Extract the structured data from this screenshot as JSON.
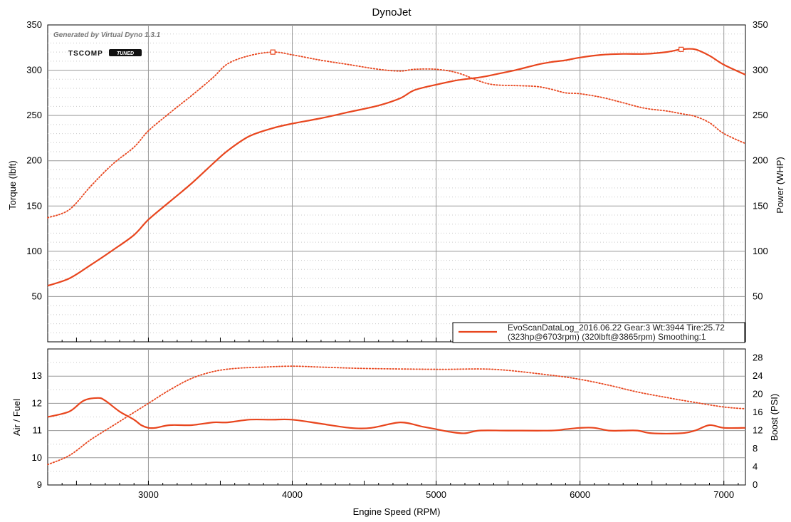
{
  "title": "DynoJet",
  "generated_by": "Generated by Virtual Dyno 1.3.1",
  "logo": {
    "text_a": "TSCOMP",
    "text_b": "TUNED"
  },
  "colors": {
    "series": "#e8461e",
    "grid": "#9a9a9a",
    "minor": "#c9c9c9",
    "frame": "#000000"
  },
  "legend": {
    "line1": "EvoScanDataLog_2016.06.22 Gear:3 Wt:3944 Tire:25.72",
    "line2": "(323hp@6703rpm) (320lbft@3865rpm) Smoothing:1"
  },
  "chart_data": [
    {
      "type": "line",
      "title": "DynoJet",
      "xlabel": "Engine Speed (RPM)",
      "ylabel": "Torque (lbft)",
      "y2label": "Power (WHP)",
      "xlim": [
        2300,
        7150
      ],
      "ylim": [
        0,
        350
      ],
      "y2lim": [
        0,
        350
      ],
      "x_ticks": [
        3000,
        4000,
        5000,
        6000,
        7000
      ],
      "y_ticks": [
        50,
        100,
        150,
        200,
        250,
        300,
        350
      ],
      "y2_ticks": [
        50,
        100,
        150,
        200,
        250,
        300,
        350
      ],
      "grid": true,
      "legend_position": "bottom-right",
      "series": [
        {
          "name": "Power (WHP)",
          "axis": "right",
          "style": "solid",
          "peak_marker": [
            6703,
            323
          ],
          "x": [
            2300,
            2450,
            2600,
            2750,
            2900,
            3000,
            3150,
            3300,
            3450,
            3550,
            3700,
            3865,
            4000,
            4200,
            4400,
            4600,
            4750,
            4850,
            5000,
            5150,
            5300,
            5400,
            5550,
            5700,
            5800,
            5900,
            6000,
            6150,
            6300,
            6450,
            6600,
            6703,
            6800,
            6900,
            7000,
            7150
          ],
          "y": [
            62,
            70,
            85,
            101,
            118,
            135,
            155,
            175,
            197,
            211,
            227,
            236,
            241,
            247,
            254,
            261,
            269,
            278,
            284,
            289,
            292,
            295,
            300,
            306,
            309,
            311,
            314,
            317,
            318,
            318,
            320,
            323,
            323,
            316,
            306,
            295
          ]
        },
        {
          "name": "Torque (lbft)",
          "axis": "left",
          "style": "dotted",
          "peak_marker": [
            3865,
            320
          ],
          "x": [
            2300,
            2450,
            2600,
            2750,
            2900,
            3000,
            3150,
            3300,
            3450,
            3550,
            3700,
            3865,
            4000,
            4200,
            4400,
            4600,
            4750,
            4850,
            5000,
            5150,
            5300,
            5400,
            5550,
            5700,
            5800,
            5900,
            6000,
            6150,
            6300,
            6450,
            6600,
            6703,
            6800,
            6900,
            7000,
            7150
          ],
          "y": [
            137,
            146,
            172,
            196,
            215,
            233,
            253,
            272,
            292,
            307,
            316,
            320,
            317,
            311,
            306,
            301,
            299,
            301,
            301,
            297,
            288,
            284,
            283,
            282,
            279,
            275,
            274,
            270,
            264,
            258,
            255,
            252,
            249,
            242,
            230,
            219
          ]
        }
      ]
    },
    {
      "type": "line",
      "xlabel": "Engine Speed (RPM)",
      "ylabel": "Air / Fuel",
      "y2label": "Boost (PSI)",
      "xlim": [
        2300,
        7150
      ],
      "ylim": [
        9,
        14
      ],
      "y2lim": [
        0,
        30
      ],
      "x_ticks": [
        3000,
        4000,
        5000,
        6000,
        7000
      ],
      "y_ticks": [
        9,
        10,
        11,
        12,
        13
      ],
      "y2_ticks": [
        0,
        4,
        8,
        12,
        16,
        20,
        24,
        28
      ],
      "grid": true,
      "series": [
        {
          "name": "Air / Fuel",
          "axis": "left",
          "style": "solid",
          "x": [
            2300,
            2450,
            2550,
            2650,
            2700,
            2800,
            2900,
            2950,
            3000,
            3050,
            3150,
            3300,
            3450,
            3550,
            3700,
            3850,
            4000,
            4200,
            4400,
            4550,
            4750,
            4900,
            5000,
            5100,
            5200,
            5300,
            5500,
            5800,
            5900,
            6000,
            6100,
            6200,
            6300,
            6400,
            6500,
            6700,
            6800,
            6900,
            7000,
            7150
          ],
          "y": [
            11.5,
            11.7,
            12.1,
            12.2,
            12.1,
            11.7,
            11.4,
            11.2,
            11.1,
            11.1,
            11.2,
            11.2,
            11.3,
            11.3,
            11.4,
            11.4,
            11.4,
            11.25,
            11.1,
            11.1,
            11.3,
            11.15,
            11.05,
            10.95,
            10.9,
            11.0,
            11.0,
            11.0,
            11.05,
            11.1,
            11.1,
            11.0,
            11.0,
            11.0,
            10.9,
            10.9,
            11.0,
            11.2,
            11.1,
            11.1
          ]
        },
        {
          "name": "Boost (PSI)",
          "axis": "right",
          "style": "dotted",
          "x": [
            2300,
            2450,
            2600,
            2750,
            2900,
            3000,
            3150,
            3300,
            3450,
            3600,
            3800,
            4000,
            4200,
            4500,
            5000,
            5400,
            5800,
            6000,
            6200,
            6400,
            6600,
            6800,
            7000,
            7150
          ],
          "y": [
            4.5,
            6.5,
            10,
            13,
            16,
            18,
            21,
            23.5,
            25,
            25.7,
            26,
            26.2,
            26,
            25.7,
            25.5,
            25.5,
            24.2,
            23.3,
            22,
            20.5,
            19.3,
            18.2,
            17.2,
            16.8
          ]
        }
      ]
    }
  ]
}
